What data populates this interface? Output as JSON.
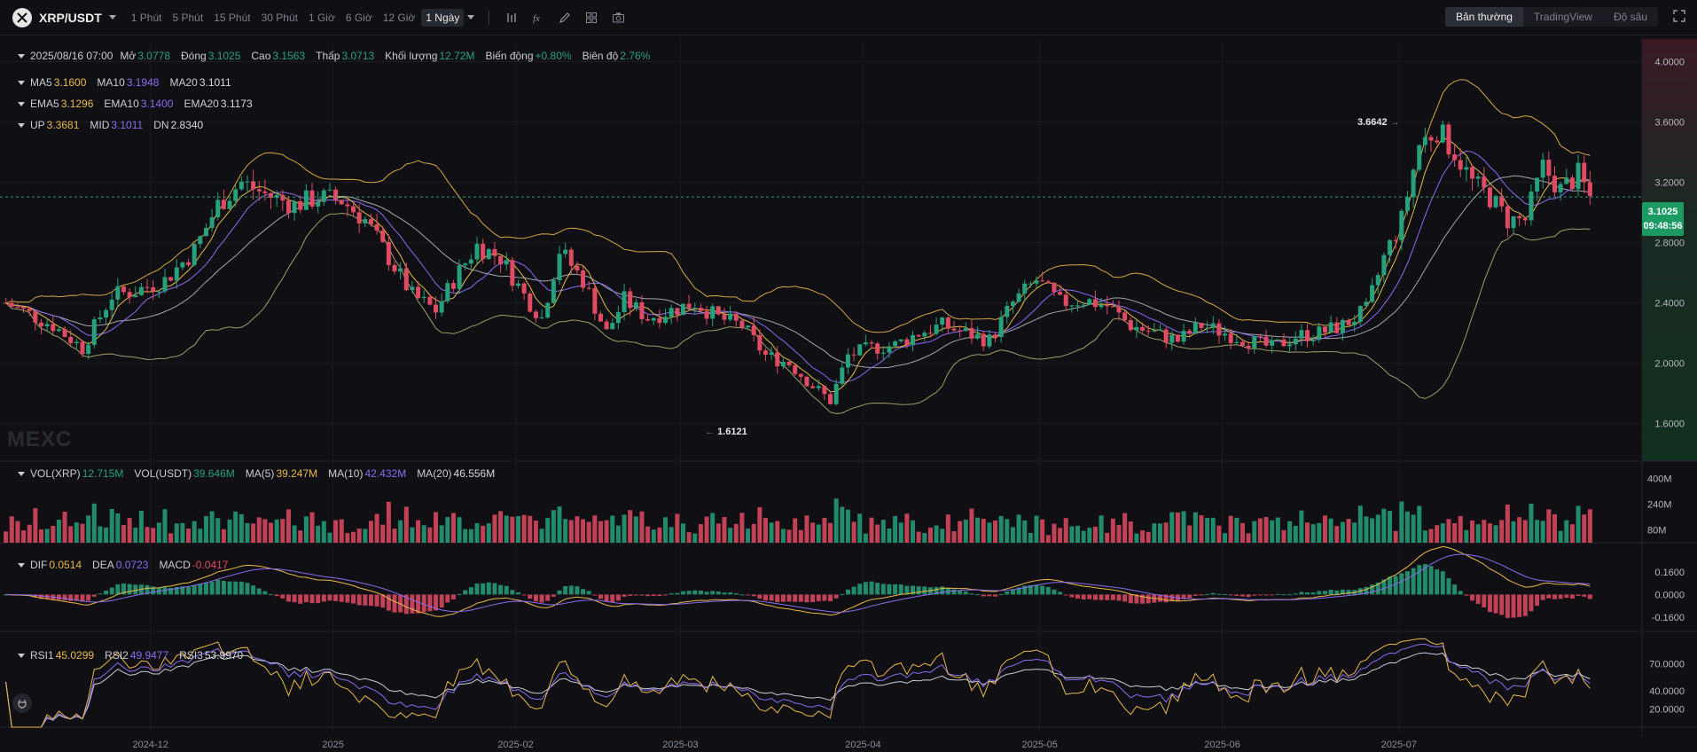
{
  "toolbar": {
    "symbol": "XRP/USDT",
    "timeframes": [
      "1 Phút",
      "5 Phút",
      "15 Phút",
      "30 Phút",
      "1 Giờ",
      "6 Giờ",
      "12 Giờ",
      "1 Ngày"
    ],
    "active_timeframe": "1 Ngày",
    "tool_icons": [
      "indicator-bars-icon",
      "function-icon",
      "pencil-icon",
      "grid-icon",
      "camera-icon"
    ],
    "views": [
      "Bản thường",
      "TradingView",
      "Độ sâu"
    ],
    "active_view": "Bản thường"
  },
  "ohlc_legend": {
    "date": "2025/08/16 07:00",
    "open_label": "Mở",
    "open": "3.0778",
    "close_label": "Đóng",
    "close": "3.1025",
    "high_label": "Cao",
    "high": "3.1563",
    "low_label": "Thấp",
    "low": "3.0713",
    "volume_label": "Khối lượng",
    "volume": "12.72M",
    "change_label": "Biến động",
    "change": "+0.80%",
    "amplitude_label": "Biên độ",
    "amplitude": "2.76%"
  },
  "ma_legend": {
    "ma5_label": "MA5",
    "ma5": "3.1600",
    "ma10_label": "MA10",
    "ma10": "3.1948",
    "ma20_label": "MA20",
    "ma20": "3.1011"
  },
  "ema_legend": {
    "ema5_label": "EMA5",
    "ema5": "3.1296",
    "ema10_label": "EMA10",
    "ema10": "3.1400",
    "ema20_label": "EMA20",
    "ema20": "3.1173"
  },
  "boll_legend": {
    "up_label": "UP",
    "up": "3.3681",
    "mid_label": "MID",
    "mid": "3.1011",
    "dn_label": "DN",
    "dn": "2.8340"
  },
  "vol_legend": {
    "vol_xrp_label": "VOL(XRP)",
    "vol_xrp": "12.715M",
    "vol_usdt_label": "VOL(USDT)",
    "vol_usdt": "39.646M",
    "ma5_label": "MA(5)",
    "ma5": "39.247M",
    "ma10_label": "MA(10)",
    "ma10": "42.432M",
    "ma20_label": "MA(20)",
    "ma20": "46.556M"
  },
  "macd_legend": {
    "dif_label": "DIF",
    "dif": "0.0514",
    "dea_label": "DEA",
    "dea": "0.0723",
    "macd_label": "MACD",
    "macd": "-0.0417"
  },
  "rsi_legend": {
    "rsi1_label": "RSI1",
    "rsi1": "45.0299",
    "rsi2_label": "RSI2",
    "rsi2": "49.9477",
    "rsi3_label": "RSI3",
    "rsi3": "53.9970"
  },
  "watermark": "MEXC",
  "current_price": {
    "price": "3.1025",
    "countdown": "09:48:56"
  },
  "extremes": {
    "high": "3.6642",
    "low": "1.6121"
  },
  "colors": {
    "up": "#26a17b",
    "down": "#e04b63",
    "ma5": "#e8b84a",
    "ma10": "#8a6cf0",
    "ma20": "#c8ccd4",
    "boll": "#d4a843",
    "rsi1": "#e8b84a",
    "rsi2": "#8a6cf0",
    "rsi3": "#c8ccd4",
    "price_tag": "#1d9a63"
  },
  "chart_data": {
    "type": "candlestick",
    "x_ticks": [
      "2024-12",
      "2025",
      "2025-02",
      "2025-03",
      "2025-04",
      "2025-05",
      "2025-06",
      "2025-07"
    ],
    "price_axis": {
      "ticks": [
        "4.0000",
        "3.6000",
        "3.2000",
        "2.8000",
        "2.4000",
        "2.0000",
        "1.6000"
      ],
      "range": [
        1.35,
        4.15
      ]
    },
    "volume_axis": {
      "ticks": [
        "400M",
        "240M",
        "80M"
      ],
      "range": [
        0,
        480
      ]
    },
    "macd_axis": {
      "ticks": [
        "0.1600",
        "0.0000",
        "-0.1600"
      ],
      "range": [
        -0.26,
        0.34
      ]
    },
    "rsi_axis": {
      "ticks": [
        "70.0000",
        "40.0000",
        "20.0000"
      ],
      "range": [
        0,
        100
      ]
    },
    "price_path": [
      [
        "2024-11-20",
        2.4
      ],
      [
        "2024-11-28",
        2.25
      ],
      [
        "2024-12-03",
        2.1
      ],
      [
        "2024-12-08",
        2.45
      ],
      [
        "2024-12-12",
        2.48
      ],
      [
        "2024-12-17",
        2.55
      ],
      [
        "2024-12-22",
        2.75
      ],
      [
        "2024-12-26",
        3.05
      ],
      [
        "2024-12-30",
        3.2
      ],
      [
        "2025-01-03",
        3.12
      ],
      [
        "2025-01-08",
        3.05
      ],
      [
        "2025-01-12",
        3.1
      ],
      [
        "2025-01-16",
        3.08
      ],
      [
        "2025-01-20",
        2.95
      ],
      [
        "2025-01-24",
        2.7
      ],
      [
        "2025-01-28",
        2.45
      ],
      [
        "2025-02-01",
        2.35
      ],
      [
        "2025-02-04",
        2.55
      ],
      [
        "2025-02-08",
        2.78
      ],
      [
        "2025-02-12",
        2.7
      ],
      [
        "2025-02-16",
        2.45
      ],
      [
        "2025-02-19",
        2.3
      ],
      [
        "2025-02-22",
        2.75
      ],
      [
        "2025-02-26",
        2.55
      ],
      [
        "2025-03-02",
        2.2
      ],
      [
        "2025-03-05",
        2.42
      ],
      [
        "2025-03-09",
        2.3
      ],
      [
        "2025-03-13",
        2.35
      ],
      [
        "2025-03-17",
        2.4
      ],
      [
        "2025-03-21",
        2.3
      ],
      [
        "2025-03-25",
        2.25
      ],
      [
        "2025-03-29",
        2.05
      ],
      [
        "2025-04-02",
        2.0
      ],
      [
        "2025-04-06",
        1.85
      ],
      [
        "2025-04-09",
        1.75
      ],
      [
        "2025-04-12",
        2.05
      ],
      [
        "2025-04-16",
        2.1
      ],
      [
        "2025-04-20",
        2.12
      ],
      [
        "2025-04-24",
        2.2
      ],
      [
        "2025-04-28",
        2.25
      ],
      [
        "2025-05-02",
        2.2
      ],
      [
        "2025-05-06",
        2.15
      ],
      [
        "2025-05-10",
        2.4
      ],
      [
        "2025-05-14",
        2.55
      ],
      [
        "2025-05-18",
        2.4
      ],
      [
        "2025-05-22",
        2.42
      ],
      [
        "2025-05-26",
        2.38
      ],
      [
        "2025-05-30",
        2.25
      ],
      [
        "2025-06-03",
        2.2
      ],
      [
        "2025-06-07",
        2.15
      ],
      [
        "2025-06-11",
        2.25
      ],
      [
        "2025-06-15",
        2.2
      ],
      [
        "2025-06-19",
        2.15
      ],
      [
        "2025-06-23",
        2.1
      ],
      [
        "2025-06-27",
        2.18
      ],
      [
        "2025-07-01",
        2.2
      ],
      [
        "2025-07-05",
        2.25
      ],
      [
        "2025-07-09",
        2.35
      ],
      [
        "2025-07-12",
        2.7
      ],
      [
        "2025-07-15",
        2.95
      ],
      [
        "2025-07-18",
        3.45
      ],
      [
        "2025-07-21",
        3.55
      ],
      [
        "2025-07-24",
        3.4
      ],
      [
        "2025-07-27",
        3.2
      ],
      [
        "2025-07-30",
        3.1
      ],
      [
        "2025-08-02",
        2.95
      ],
      [
        "2025-08-05",
        2.95
      ],
      [
        "2025-08-08",
        3.3
      ],
      [
        "2025-08-11",
        3.15
      ],
      [
        "2025-08-14",
        3.25
      ],
      [
        "2025-08-16",
        3.1
      ]
    ]
  }
}
